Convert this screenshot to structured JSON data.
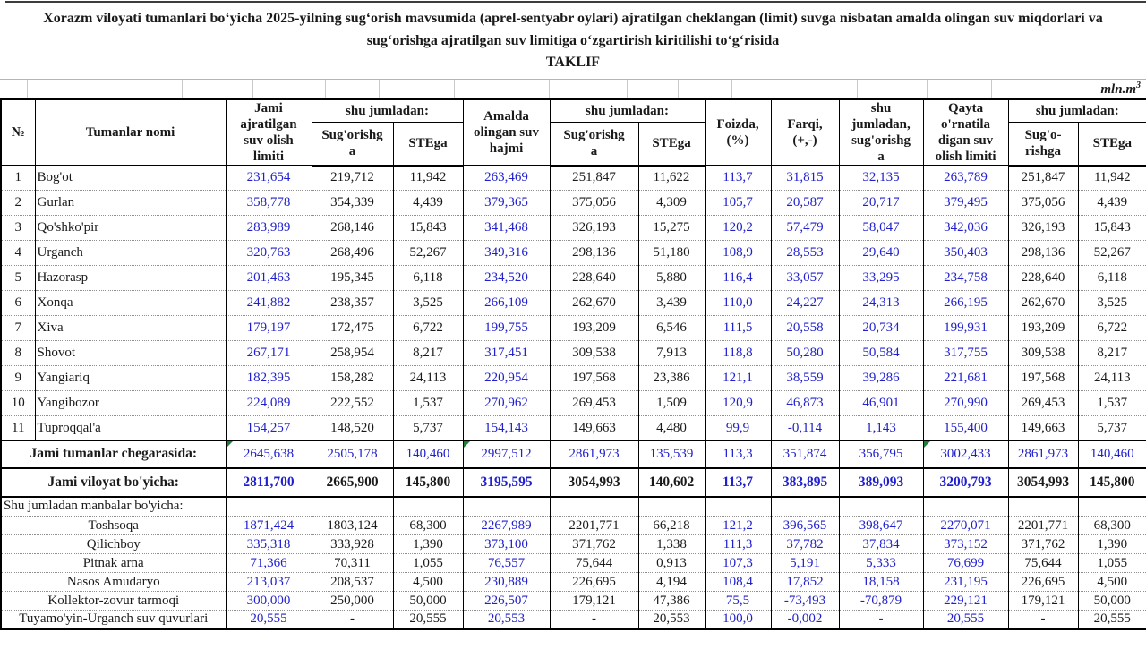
{
  "title": {
    "text": "Xorazm viloyati tumanlari boʻyicha 2025-yilning sugʻorish mavsumida (aprel-sentyabr oylari) ajratilgan cheklangan (limit) suvga nisbatan amalda olingan suv miqdorlari va sugʻorishga ajratilgan suv limitiga oʻzgartirish kiritilishi toʻgʻrisida",
    "subtitle": "TAKLIF"
  },
  "unit": {
    "label": "mln.m",
    "sup": "3"
  },
  "header": {
    "no": "№",
    "name": "Tumanlar nomi",
    "limit": "Jami\najratilgan\nsuv olish\nlimiti",
    "incl1": "shu  jumladan:",
    "sug1": "Sug'orishg\na",
    "ste1": "STEga",
    "amalda": "Amalda\nolingan suv\nhajmi",
    "incl2": "shu  jumladan:",
    "sug2": "Sug'orishg\na",
    "ste2": "STEga",
    "foizda": "Foizda,\n(%)",
    "farqi": "Farqi,\n(+,-)",
    "incl_sug": "shu\njumladan,\nsug'orishg\na",
    "qayta": "Qayta\no'rnatila\ndigan suv\nolish limiti",
    "incl3": "shu  jumladan:",
    "sug3": "Sug'o-\nrishga",
    "ste3": "STEga"
  },
  "districts": [
    {
      "no": "1",
      "name": "Bog'ot",
      "values": [
        "231,654",
        "219,712",
        "11,942",
        "263,469",
        "251,847",
        "11,622",
        "113,7",
        "31,815",
        "32,135",
        "263,789",
        "251,847",
        "11,942"
      ]
    },
    {
      "no": "2",
      "name": "Gurlan",
      "values": [
        "358,778",
        "354,339",
        "4,439",
        "379,365",
        "375,056",
        "4,309",
        "105,7",
        "20,587",
        "20,717",
        "379,495",
        "375,056",
        "4,439"
      ]
    },
    {
      "no": "3",
      "name": "Qo'shko'pir",
      "values": [
        "283,989",
        "268,146",
        "15,843",
        "341,468",
        "326,193",
        "15,275",
        "120,2",
        "57,479",
        "58,047",
        "342,036",
        "326,193",
        "15,843"
      ]
    },
    {
      "no": "4",
      "name": "Urganch",
      "values": [
        "320,763",
        "268,496",
        "52,267",
        "349,316",
        "298,136",
        "51,180",
        "108,9",
        "28,553",
        "29,640",
        "350,403",
        "298,136",
        "52,267"
      ]
    },
    {
      "no": "5",
      "name": "Hazorasp",
      "values": [
        "201,463",
        "195,345",
        "6,118",
        "234,520",
        "228,640",
        "5,880",
        "116,4",
        "33,057",
        "33,295",
        "234,758",
        "228,640",
        "6,118"
      ]
    },
    {
      "no": "6",
      "name": "Xonqa",
      "values": [
        "241,882",
        "238,357",
        "3,525",
        "266,109",
        "262,670",
        "3,439",
        "110,0",
        "24,227",
        "24,313",
        "266,195",
        "262,670",
        "3,525"
      ]
    },
    {
      "no": "7",
      "name": "Xiva",
      "values": [
        "179,197",
        "172,475",
        "6,722",
        "199,755",
        "193,209",
        "6,546",
        "111,5",
        "20,558",
        "20,734",
        "199,931",
        "193,209",
        "6,722"
      ]
    },
    {
      "no": "8",
      "name": "Shovot",
      "values": [
        "267,171",
        "258,954",
        "8,217",
        "317,451",
        "309,538",
        "7,913",
        "118,8",
        "50,280",
        "50,584",
        "317,755",
        "309,538",
        "8,217"
      ]
    },
    {
      "no": "9",
      "name": "Yangiariq",
      "values": [
        "182,395",
        "158,282",
        "24,113",
        "220,954",
        "197,568",
        "23,386",
        "121,1",
        "38,559",
        "39,286",
        "221,681",
        "197,568",
        "24,113"
      ]
    },
    {
      "no": "10",
      "name": "Yangibozor",
      "values": [
        "224,089",
        "222,552",
        "1,537",
        "270,962",
        "269,453",
        "1,509",
        "120,9",
        "46,873",
        "46,901",
        "270,990",
        "269,453",
        "1,537"
      ]
    },
    {
      "no": "11",
      "name": "Tuproqqal'a",
      "values": [
        "154,257",
        "148,520",
        "5,737",
        "154,143",
        "149,663",
        "4,480",
        "99,9",
        "-0,114",
        "1,143",
        "155,400",
        "149,663",
        "5,737"
      ]
    }
  ],
  "totals": [
    {
      "label": "Jami tumanlar chegarasida:",
      "style": "all-blue",
      "flags": [
        0,
        3,
        9
      ],
      "values": [
        "2645,638",
        "2505,178",
        "140,460",
        "2997,512",
        "2861,973",
        "135,539",
        "113,3",
        "351,874",
        "356,795",
        "3002,433",
        "2861,973",
        "140,460"
      ]
    },
    {
      "label": "Jami viloyat bo'yicha:",
      "style": "bold-mixed",
      "flags": [],
      "values": [
        "2811,700",
        "2665,900",
        "145,800",
        "3195,595",
        "3054,993",
        "140,602",
        "113,7",
        "383,895",
        "389,093",
        "3200,793",
        "3054,993",
        "145,800"
      ]
    }
  ],
  "sources_section": {
    "label": "Shu jumladan manbalar bo'yicha:"
  },
  "sources": [
    {
      "name": "Toshsoqa",
      "values": [
        "1871,424",
        "1803,124",
        "68,300",
        "2267,989",
        "2201,771",
        "66,218",
        "121,2",
        "396,565",
        "398,647",
        "2270,071",
        "2201,771",
        "68,300"
      ]
    },
    {
      "name": "Qilichboy",
      "values": [
        "335,318",
        "333,928",
        "1,390",
        "373,100",
        "371,762",
        "1,338",
        "111,3",
        "37,782",
        "37,834",
        "373,152",
        "371,762",
        "1,390"
      ]
    },
    {
      "name": "Pitnak arna",
      "values": [
        "71,366",
        "70,311",
        "1,055",
        "76,557",
        "75,644",
        "0,913",
        "107,3",
        "5,191",
        "5,333",
        "76,699",
        "75,644",
        "1,055"
      ]
    },
    {
      "name": "Nasos Amudaryo",
      "values": [
        "213,037",
        "208,537",
        "4,500",
        "230,889",
        "226,695",
        "4,194",
        "108,4",
        "17,852",
        "18,158",
        "231,195",
        "226,695",
        "4,500"
      ]
    },
    {
      "name": "Kollektor-zovur tarmoqi",
      "values": [
        "300,000",
        "250,000",
        "50,000",
        "226,507",
        "179,121",
        "47,386",
        "75,5",
        "-73,493",
        "-70,879",
        "229,121",
        "179,121",
        "50,000"
      ]
    },
    {
      "name": "Tuyamo'yin-Urganch suv quvurlari",
      "values": [
        "20,555",
        "-",
        "20,555",
        "20,553",
        "-",
        "20,553",
        "100,0",
        "-0,002",
        "-",
        "20,555",
        "-",
        "20,555"
      ]
    }
  ],
  "colors": {
    "accent_blue": "#2020cf",
    "text_black": "#1a1a1a",
    "flag_green": "#1e7e34"
  }
}
